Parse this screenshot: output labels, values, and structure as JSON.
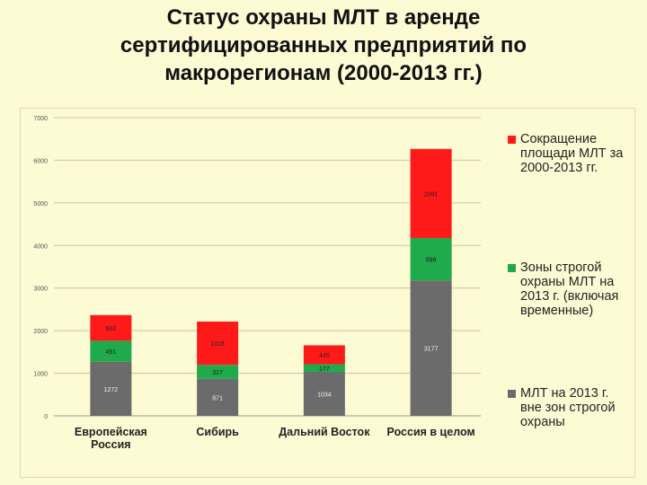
{
  "title_lines": [
    "Статус охраны МЛТ в аренде",
    "сертифицированных предприятий по",
    "макрорегионам (2000-2013 гг.)"
  ],
  "chart_data": {
    "type": "bar",
    "stacked": true,
    "categories": [
      [
        "Европейская",
        "Россия"
      ],
      [
        "Сибирь"
      ],
      [
        "Дальний Восток"
      ],
      [
        "Россия в целом"
      ]
    ],
    "series": [
      {
        "name": "МЛТ на 2013 г. вне зон строгой охраны",
        "legend_lines": [
          "МЛТ на 2013 г.",
          "вне зон строгой",
          "охраны"
        ],
        "color": "#6b6b6b",
        "values": [
          1272,
          871,
          1034,
          3177
        ]
      },
      {
        "name": "Зоны строгой охраны МЛТ на 2013 г. (включая временные)",
        "legend_lines": [
          "Зоны строгой",
          "охраны МЛТ на",
          "2013 г. (включая",
          "временные)"
        ],
        "color": "#1faa4b",
        "values": [
          491,
          327,
          177,
          998
        ]
      },
      {
        "name": "Сокращение площади МЛТ за 2000-2013 гг.",
        "legend_lines": [
          "Сокращение",
          "площади МЛТ за",
          "2000-2013 гг."
        ],
        "color": "#ff1a1a",
        "values": [
          602,
          1015,
          445,
          2091
        ]
      }
    ],
    "ylim": [
      0,
      7000
    ],
    "yticks": [
      0,
      1000,
      2000,
      3000,
      4000,
      5000,
      6000,
      7000
    ],
    "grid": true,
    "legend_position": "right"
  }
}
